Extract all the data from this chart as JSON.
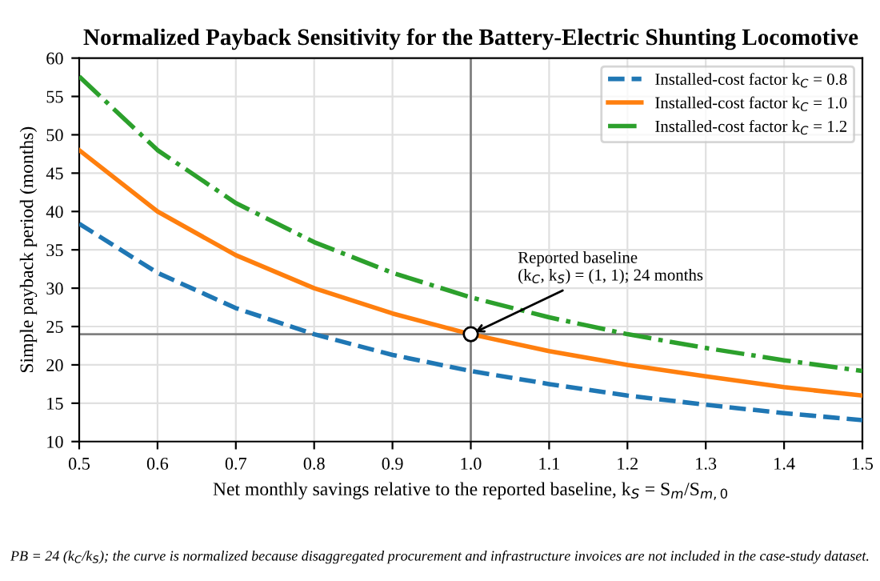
{
  "chart_data": {
    "type": "line",
    "title": "Normalized Payback Sensitivity for the Battery-Electric Shunting Locomotive",
    "xlabel": "Net monthly savings relative to the reported baseline, k$_{S}$ = S$_{m}$/S$_{m,0}$",
    "ylabel": "Simple payback period (months)",
    "x": [
      0.5,
      0.6,
      0.7,
      0.8,
      0.9,
      1.0,
      1.1,
      1.2,
      1.3,
      1.4,
      1.5
    ],
    "series": [
      {
        "name": "Installed-cost factor k$_{C}$ = 0.8",
        "color": "#1f77b4",
        "line_style": "dashed",
        "values": [
          38.4,
          32,
          27.4,
          24,
          21.3,
          19.2,
          17.5,
          16,
          14.8,
          13.7,
          12.8
        ]
      },
      {
        "name": "Installed-cost factor k$_{C}$ = 1.0",
        "color": "#ff7f0e",
        "line_style": "solid",
        "values": [
          48,
          40,
          34.3,
          30,
          26.7,
          24,
          21.8,
          20,
          18.5,
          17.1,
          16
        ]
      },
      {
        "name": "Installed-cost factor k$_{C}$ = 1.2",
        "color": "#2ca02c",
        "line_style": "dashdot",
        "values": [
          57.6,
          48,
          41.1,
          36,
          32,
          28.8,
          26.2,
          24,
          22.2,
          20.6,
          19.2
        ]
      },
      {
        "type": "scatter",
        "x": [
          1.0
        ],
        "values": [
          24
        ],
        "color": "#ffffff",
        "marker": "circle"
      }
    ],
    "xlim": [
      0.5,
      1.5
    ],
    "ylim": [
      10,
      60
    ],
    "xticks": [
      {
        "value": 0.5,
        "label": "0.5"
      },
      {
        "value": 0.6,
        "label": "0.6"
      },
      {
        "value": 0.7,
        "label": "0.7"
      },
      {
        "value": 0.8,
        "label": "0.8"
      },
      {
        "value": 0.9,
        "label": "0.9"
      },
      {
        "value": 1.0,
        "label": "1.0"
      },
      {
        "value": 1.1,
        "label": "1.1"
      },
      {
        "value": 1.2,
        "label": "1.2"
      },
      {
        "value": 1.3,
        "label": "1.3"
      },
      {
        "value": 1.4,
        "label": "1.4"
      },
      {
        "value": 1.5,
        "label": "1.5"
      }
    ],
    "yticks": [
      10,
      15,
      20,
      25,
      30,
      35,
      40,
      45,
      50,
      55,
      60
    ],
    "ref_lines": [
      {
        "axis": "x",
        "value": 1.0,
        "color": "#808080"
      },
      {
        "axis": "y",
        "value": 24,
        "color": "#808080"
      }
    ],
    "annotations": [
      {
        "text": "Reported baseline\n(k$_{C}$, k$_{S}$) = (1, 1); 24 months",
        "x": 1.0,
        "y": 24
      },
      "PB = 24 (k$_{C}$/k$_{S}$); the curve is normalized because disaggregated procurement and infrastructure invoices are not included in the case-study dataset."
    ],
    "grid": true,
    "legend": "top right"
  }
}
